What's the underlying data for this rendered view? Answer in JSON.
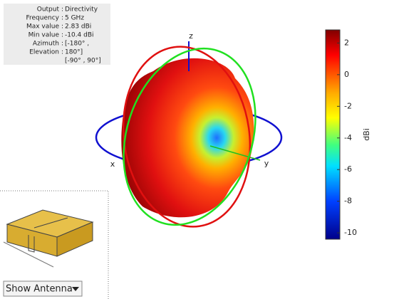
{
  "info_panel": {
    "rows": [
      {
        "label": "Output",
        "value": "Directivity"
      },
      {
        "label": "Frequency",
        "value": "5 GHz"
      },
      {
        "label": "Max value",
        "value": "2.83 dBi"
      },
      {
        "label": "Min value",
        "value": "-10.4 dBi"
      },
      {
        "label": "Azimuth",
        "value": "[-180° ,"
      },
      {
        "label": "Elevation",
        "value": "180°]"
      }
    ],
    "extra": "[-90° , 90°]"
  },
  "axes": {
    "x": "x",
    "y": "y",
    "z": "z"
  },
  "colorbar": {
    "label": "dBi",
    "lim": [
      -10.4,
      2.83
    ],
    "ticks": [
      2,
      0,
      -2,
      -4,
      -6,
      -8,
      -10
    ]
  },
  "dropdown": {
    "label": "Show Antenna"
  }
}
